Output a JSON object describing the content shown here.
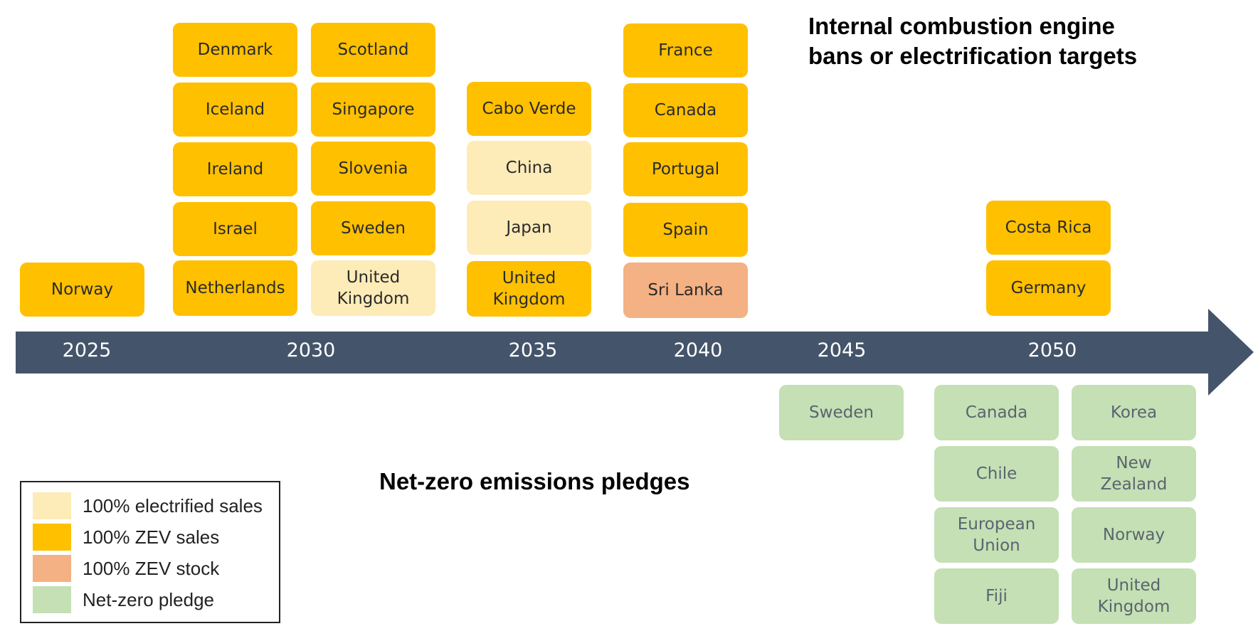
{
  "headings": {
    "top_line1": "Internal combustion engine",
    "top_line2": "bans or electrification targets",
    "bottom": "Net-zero emissions pledges"
  },
  "colors": {
    "electrified_sales": "#FDEBB8",
    "zev_sales": "#FFC000",
    "zev_stock": "#F4B183",
    "net_zero_pledge": "#C5E0B4",
    "axis": "#44546A",
    "axis_label": "#FFFFFF"
  },
  "legend": [
    {
      "key": "electrified_sales",
      "label": "100% electrified sales"
    },
    {
      "key": "zev_sales",
      "label": "100% ZEV sales"
    },
    {
      "key": "zev_stock",
      "label": "100% ZEV stock"
    },
    {
      "key": "net_zero_pledge",
      "label": "Net-zero pledge"
    }
  ],
  "timeline": {
    "years": [
      "2025",
      "2030",
      "2035",
      "2040",
      "2045",
      "2050"
    ]
  },
  "ice_targets": {
    "col_2025": [
      {
        "label": "Norway",
        "type": "zev_sales"
      }
    ],
    "col_2030a": [
      {
        "label": "Denmark",
        "type": "zev_sales"
      },
      {
        "label": "Iceland",
        "type": "zev_sales"
      },
      {
        "label": "Ireland",
        "type": "zev_sales"
      },
      {
        "label": "Israel",
        "type": "zev_sales"
      },
      {
        "label": "Netherlands",
        "type": "zev_sales"
      }
    ],
    "col_2030b": [
      {
        "label": "Scotland",
        "type": "zev_sales"
      },
      {
        "label": "Singapore",
        "type": "zev_sales"
      },
      {
        "label": "Slovenia",
        "type": "zev_sales"
      },
      {
        "label": "Sweden",
        "type": "zev_sales"
      },
      {
        "label": "United\nKingdom",
        "type": "electrified_sales"
      }
    ],
    "col_2035": [
      {
        "label": "Cabo Verde",
        "type": "zev_sales"
      },
      {
        "label": "China",
        "type": "electrified_sales"
      },
      {
        "label": "Japan",
        "type": "electrified_sales"
      },
      {
        "label": "United\nKingdom",
        "type": "zev_sales"
      }
    ],
    "col_2040": [
      {
        "label": "France",
        "type": "zev_sales"
      },
      {
        "label": "Canada",
        "type": "zev_sales"
      },
      {
        "label": "Portugal",
        "type": "zev_sales"
      },
      {
        "label": "Spain",
        "type": "zev_sales"
      },
      {
        "label": "Sri Lanka",
        "type": "zev_stock"
      }
    ],
    "col_2050": [
      {
        "label": "Costa Rica",
        "type": "zev_sales"
      },
      {
        "label": "Germany",
        "type": "zev_sales"
      }
    ]
  },
  "net_zero": {
    "col_2045": [
      {
        "label": "Sweden",
        "type": "net_zero_pledge"
      }
    ],
    "col_2050a": [
      {
        "label": "Canada",
        "type": "net_zero_pledge"
      },
      {
        "label": "Chile",
        "type": "net_zero_pledge"
      },
      {
        "label": "European\nUnion",
        "type": "net_zero_pledge"
      },
      {
        "label": "Fiji",
        "type": "net_zero_pledge"
      }
    ],
    "col_2050b": [
      {
        "label": "Korea",
        "type": "net_zero_pledge"
      },
      {
        "label": "New\nZealand",
        "type": "net_zero_pledge"
      },
      {
        "label": "Norway",
        "type": "net_zero_pledge"
      },
      {
        "label": "United\nKingdom",
        "type": "net_zero_pledge"
      }
    ]
  }
}
